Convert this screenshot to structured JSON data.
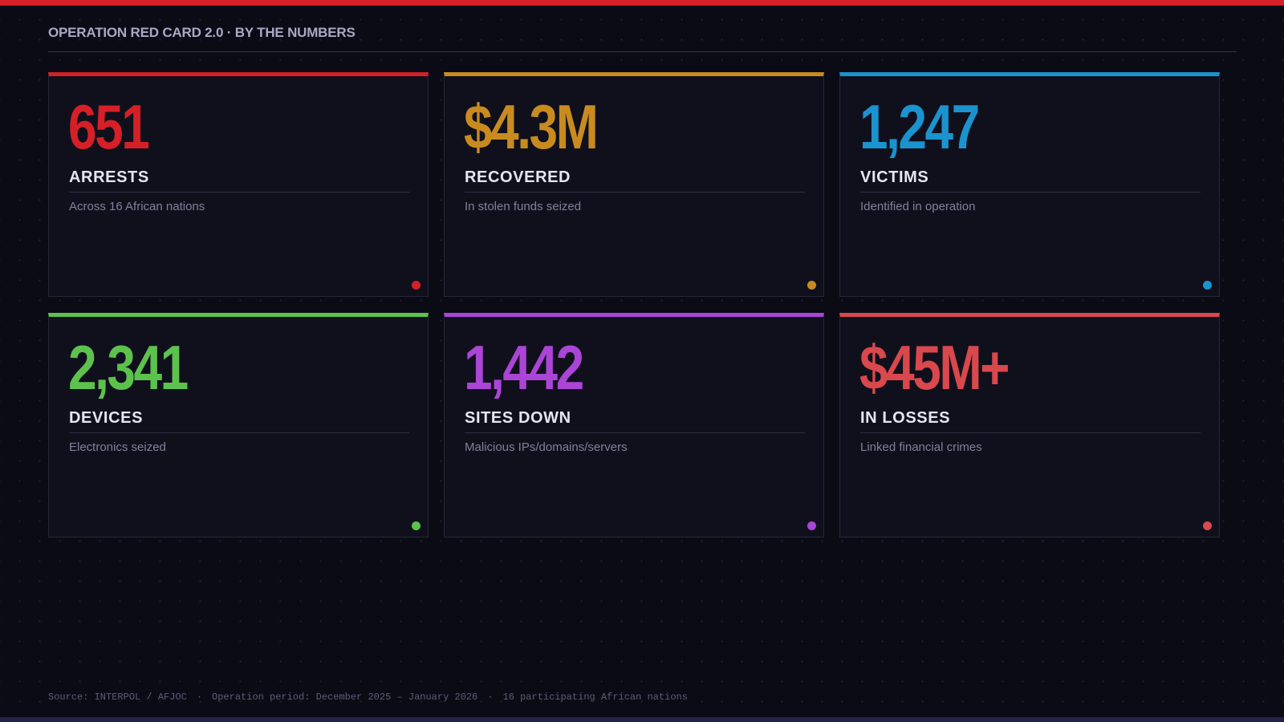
{
  "header": {
    "title": "OPERATION RED CARD 2.0 · BY THE NUMBERS"
  },
  "cards": [
    {
      "value": "651",
      "label": "ARRESTS",
      "description": "Across 16 African nations",
      "accent": "#d52027"
    },
    {
      "value": "$4.3M",
      "label": "RECOVERED",
      "description": "In stolen funds seized",
      "accent": "#c98b1f"
    },
    {
      "value": "1,247",
      "label": "VICTIMS",
      "description": "Identified in operation",
      "accent": "#1b93cf"
    },
    {
      "value": "2,341",
      "label": "DEVICES",
      "description": "Electronics seized",
      "accent": "#5cc24d"
    },
    {
      "value": "1,442",
      "label": "SITES DOWN",
      "description": "Malicious IPs/domains/servers",
      "accent": "#ab45d6"
    },
    {
      "value": "$45M+",
      "label": "IN LOSSES",
      "description": "Linked financial crimes",
      "accent": "#d9484c"
    }
  ],
  "footer": {
    "source": "Source: INTERPOL / AFJOC",
    "period": "Operation period: December 2025 – January 2026",
    "nations": "16 participating African nations",
    "separator": "·"
  }
}
